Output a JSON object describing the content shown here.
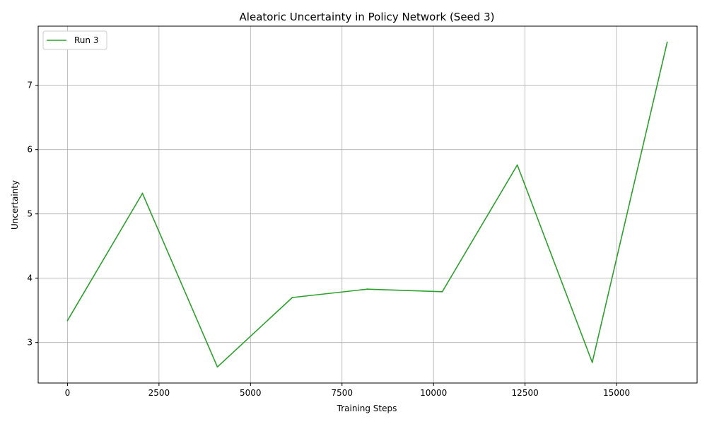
{
  "chart_data": {
    "type": "line",
    "title": "Aleatoric Uncertainty in Policy Network (Seed 3)",
    "xlabel": "Training Steps",
    "ylabel": "Uncertainty",
    "xlim": [
      -800,
      17200
    ],
    "ylim": [
      2.37,
      7.92
    ],
    "xticks": [
      0,
      2500,
      5000,
      7500,
      10000,
      12500,
      15000
    ],
    "yticks": [
      3,
      4,
      5,
      6,
      7
    ],
    "grid": true,
    "legend_position": "top-left",
    "series": [
      {
        "name": "Run 3",
        "color": "#2ca02c",
        "x": [
          0,
          2048,
          4096,
          6144,
          8192,
          10240,
          12288,
          14336,
          16384
        ],
        "y": [
          3.34,
          5.32,
          2.62,
          3.7,
          3.83,
          3.79,
          5.76,
          2.69,
          7.67
        ]
      }
    ]
  }
}
